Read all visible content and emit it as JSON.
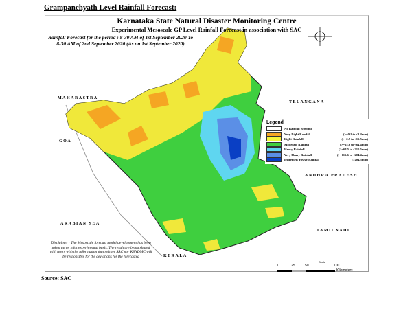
{
  "heading": "Grampanchyath Level Rainfall Forecast:",
  "map": {
    "title": "Karnataka State Natural Disaster Monitoring Centre",
    "subtitle": "Experimental Mesoscale GP Level Rainfall Forecast in association with SAC",
    "period_line1": "Rainfall Forecast for the period : 8-30 AM of 1st September 2020 To",
    "period_line2": "8-30 AM of 2nd September 2020 (As on 1st September 2020)",
    "neighbors": {
      "maharastra": "MAHARASTRA",
      "telangana": "TELANGANA",
      "goa": "GOA",
      "andhra": "ANDHRA PRADESH",
      "arabian_sea": "ARABIAN SEA",
      "tamilnadu": "TAMILNADU",
      "kerala": "KERALA"
    },
    "legend": {
      "title": "Legend",
      "items": [
        {
          "label": "No Rainfall (0.0mm)",
          "range": "",
          "color": "#ffffff"
        },
        {
          "label": "Very Light Rainfall",
          "range": "(>=0.1 to <2.4mm)",
          "color": "#f5a623"
        },
        {
          "label": "Light Rainfall",
          "range": "(>=2.5 to <15.5mm)",
          "color": "#f5f53a"
        },
        {
          "label": "Moderate Rainfall",
          "range": "(>=15.6 to <64.4mm)",
          "color": "#3fcf3f"
        },
        {
          "label": "Heavy Rainfall",
          "range": "(>=64.5 to <115.5mm)",
          "color": "#5fd6f0"
        },
        {
          "label": "Very Heavy Rainfall",
          "range": "(>=115.6 to <204.4mm)",
          "color": "#5b8fe6"
        },
        {
          "label": "Extremely Heavy Rainfall",
          "range": "(>204.5mm)",
          "color": "#0a3fc4"
        }
      ]
    },
    "disclaimer": "Disclaimer : The Mesoscale forecast model development has been taken up on pilot experimental basis. The result are being shared with users with the information that neither SAC nor KSNDMC will be responsible for the deviations for the forecasted",
    "scale": {
      "title": "Scale",
      "ticks": [
        "0",
        "25",
        "50",
        "100"
      ],
      "unit": "Kilometers"
    }
  },
  "source": "Source: SAC"
}
